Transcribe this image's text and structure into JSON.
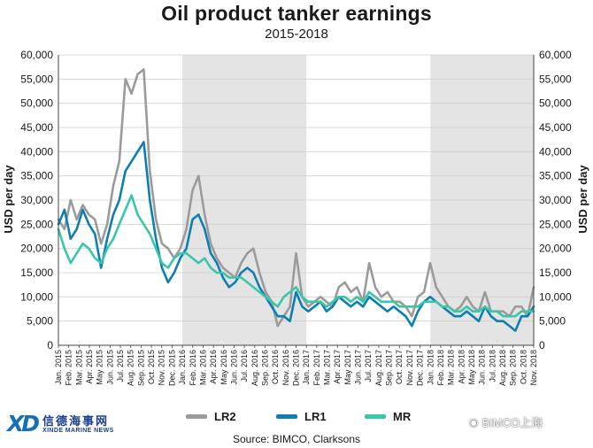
{
  "header": {
    "title": "Oil product tanker earnings",
    "subtitle": "2015-2018"
  },
  "footer": {
    "source": "Source: BIMCO, Clarksons",
    "watermark": "BIMCO上海",
    "logo_cn": "信德海事网",
    "logo_en": "XINDE MARINE NEWS"
  },
  "chart_data": {
    "type": "line",
    "title": "Oil product tanker earnings",
    "subtitle": "2015-2018",
    "ylabel": "USD per day",
    "ylabel_right": "USD per day",
    "ylim": [
      0,
      60000
    ],
    "yticks": [
      "0",
      "5,000",
      "10,000",
      "15,000",
      "20,000",
      "25,000",
      "30,000",
      "35,000",
      "40,000",
      "45,000",
      "50,000",
      "55,000",
      "60,000"
    ],
    "x_tick_labels": [
      "Jan. 2015",
      "Feb. 2015",
      "Mar. 2015",
      "Apr. 2015",
      "May 2015",
      "Jun. 2015",
      "Jul. 2015",
      "Aug. 2015",
      "Sep. 2015",
      "Oct. 2015",
      "Nov. 2015",
      "Dec. 2015",
      "Jan. 2016",
      "Feb. 2016",
      "Mar. 2016",
      "Apr. 2016",
      "May 2016",
      "Jun. 2016",
      "Jul. 2016",
      "Aug. 2016",
      "Sep. 2016",
      "Oct. 2016",
      "Nov. 2016",
      "Dec. 2016",
      "Jan. 2017",
      "Feb. 2017",
      "Mar. 2017",
      "Apr. 2017",
      "May 2017",
      "Jun. 2017",
      "Jul. 2017",
      "Aug. 2017",
      "Sep. 2017",
      "Oct. 2017",
      "Nov. 2017",
      "Dec. 2017",
      "Jan. 2018",
      "Feb. 2018",
      "Mar. 2018",
      "Apr. 2018",
      "May 2018",
      "Jun. 2018",
      "Jul. 2018",
      "Aug. 2018",
      "Sep. 2018",
      "Oct. 2018",
      "Nov. 2018"
    ],
    "x_start": "Jan. 2015",
    "x_end": "Nov. 2018",
    "shaded_ranges": [
      [
        "Jan. 2016",
        "Dec. 2016"
      ],
      [
        "Jan. 2018",
        "Nov. 2018"
      ]
    ],
    "grid": "horizontal",
    "legend_position": "bottom",
    "series": [
      {
        "name": "LR2",
        "color": "#9b9b9b",
        "values": [
          26000,
          24000,
          30000,
          26000,
          29000,
          27000,
          26000,
          21000,
          25000,
          33000,
          38000,
          55000,
          52000,
          56000,
          57000,
          36000,
          26000,
          21000,
          20000,
          18000,
          20000,
          24000,
          32000,
          35000,
          27000,
          21000,
          18000,
          16000,
          15000,
          14000,
          17000,
          19000,
          20000,
          15000,
          11000,
          9000,
          4000,
          6000,
          8000,
          19000,
          10000,
          8000,
          9000,
          10000,
          9000,
          8000,
          12000,
          13000,
          11000,
          12000,
          9000,
          17000,
          12000,
          10000,
          11000,
          9000,
          9000,
          8000,
          6000,
          10000,
          11000,
          17000,
          12000,
          10000,
          8000,
          7000,
          8000,
          10000,
          8000,
          7000,
          11000,
          7000,
          7000,
          7000,
          6000,
          8000,
          8000,
          6000,
          12000
        ]
      },
      {
        "name": "LR1",
        "color": "#0e7fb0",
        "values": [
          25000,
          28000,
          22000,
          24000,
          28000,
          25000,
          23000,
          16000,
          22000,
          27000,
          30000,
          36000,
          38000,
          40000,
          42000,
          30000,
          22000,
          16000,
          13000,
          15000,
          18000,
          20000,
          26000,
          27000,
          24000,
          19000,
          17000,
          14000,
          12000,
          13000,
          15000,
          16000,
          15000,
          12000,
          10000,
          8000,
          6000,
          6000,
          5000,
          11000,
          8000,
          7000,
          8000,
          9000,
          7000,
          8000,
          10000,
          9000,
          8000,
          9000,
          8000,
          10000,
          9000,
          8000,
          7000,
          8000,
          7000,
          6000,
          4000,
          7000,
          9000,
          10000,
          9000,
          8000,
          7000,
          6000,
          6000,
          7000,
          6000,
          5000,
          8000,
          6000,
          5000,
          5000,
          4000,
          3000,
          6000,
          6000,
          8000
        ]
      },
      {
        "name": "MR",
        "color": "#3cc6a9",
        "values": [
          24000,
          20000,
          17000,
          19000,
          21000,
          20000,
          18000,
          17000,
          20000,
          22000,
          25000,
          28000,
          31000,
          27000,
          25000,
          23000,
          20000,
          17000,
          16000,
          18000,
          19000,
          19000,
          18000,
          17000,
          18000,
          16000,
          15000,
          15000,
          14000,
          14000,
          14000,
          13000,
          12000,
          11000,
          10000,
          9000,
          8000,
          10000,
          11000,
          12000,
          10000,
          9000,
          9000,
          9000,
          8000,
          9000,
          10000,
          10000,
          9000,
          10000,
          9000,
          11000,
          10000,
          9000,
          9000,
          9000,
          8000,
          8000,
          8000,
          8000,
          9000,
          9000,
          9000,
          8000,
          8000,
          7000,
          7000,
          8000,
          7000,
          7000,
          8000,
          7000,
          7000,
          6000,
          6000,
          6000,
          7000,
          7000,
          7000
        ]
      }
    ]
  }
}
